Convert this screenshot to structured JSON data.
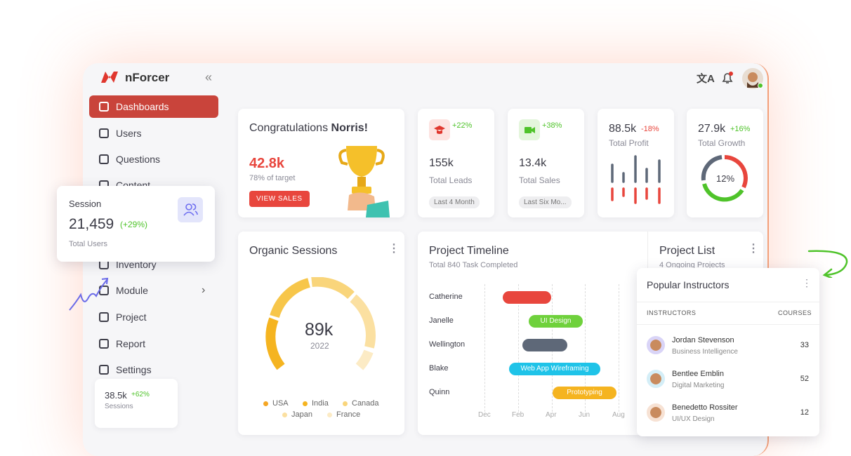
{
  "brand": "nForcer",
  "sidebar": {
    "menu": [
      "Dashboards",
      "Users",
      "Questions",
      "Content",
      "Inventory",
      "Module",
      "Project",
      "Report",
      "Settings"
    ]
  },
  "session_card": {
    "title": "Session",
    "value": "21,459",
    "change": "(+29%)",
    "caption": "Total Users"
  },
  "sessions_mini": {
    "value": "38.5k",
    "change": "+62%",
    "caption": "Sessions"
  },
  "welcome": {
    "title": "Congratulations",
    "name": "Norris!",
    "amount": "42.8k",
    "target": "78% of target",
    "button": "VIEW SALES"
  },
  "stats": [
    {
      "change": "+22%",
      "value": "155k",
      "label": "Total Leads",
      "period": "Last 4 Month"
    },
    {
      "change": "+38%",
      "value": "13.4k",
      "label": "Total Sales",
      "period": "Last Six Mo..."
    }
  ],
  "profit": {
    "value": "88.5k",
    "change": "-18%",
    "label": "Total Profit"
  },
  "growth": {
    "value": "27.9k",
    "change": "+16%",
    "label": "Total Growth",
    "percent": "12%"
  },
  "organic": {
    "title": "Organic Sessions",
    "value": "89k",
    "year": "2022",
    "legend": [
      "USA",
      "India",
      "Canada",
      "Japan",
      "France"
    ]
  },
  "timeline": {
    "title": "Project Timeline",
    "subtitle": "Total 840 Task Completed",
    "rows": [
      {
        "name": "Catherine"
      },
      {
        "name": "Janelle",
        "task": "UI Design"
      },
      {
        "name": "Wellington"
      },
      {
        "name": "Blake",
        "task": "Web App Wireframing"
      },
      {
        "name": "Quinn",
        "task": "Prototyping"
      }
    ],
    "months": [
      "Dec",
      "Feb",
      "Apr",
      "Jun",
      "Aug"
    ]
  },
  "project_list": {
    "title": "Project List",
    "subtitle": "4 Ongoing Projects"
  },
  "instructors": {
    "title": "Popular Instructors",
    "columns": [
      "INSTRUCTORS",
      "COURSES"
    ],
    "rows": [
      {
        "name": "Jordan Stevenson",
        "field": "Business Intelligence",
        "courses": 33
      },
      {
        "name": "Bentlee Emblin",
        "field": "Digital Marketing",
        "courses": 52
      },
      {
        "name": "Benedetto Rossiter",
        "field": "UI/UX Design",
        "courses": 12
      }
    ]
  }
}
